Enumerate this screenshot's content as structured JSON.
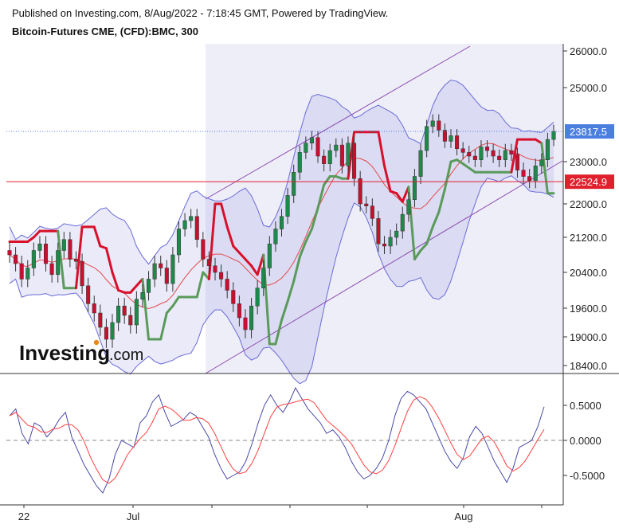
{
  "header": {
    "published": "Published on Investing.com, 8/Aug/2022 - 7:18:45 GMT, Powered by TradingView.",
    "symbol": "Bitcoin-Futures CME, (CFD):BMC, 300"
  },
  "logo": {
    "main": "Investing",
    "suffix": ".com"
  },
  "price_tags": {
    "last": "23817.5",
    "level": "22524.9"
  },
  "colors": {
    "last_tag": "#4a7fe0",
    "level_tag": "#e0202c",
    "up_candle": "#1e8a4a",
    "down_candle": "#c8102e",
    "supertrend_down": "#d8102a",
    "supertrend_up": "#5a9a5a",
    "bollinger": "#6a6ad8",
    "channel": "#8a4ab0",
    "oscillator_fast": "#4a4aa8",
    "oscillator_slow": "#ff4040"
  },
  "chart_data": [
    {
      "type": "line",
      "title": "Bitcoin-Futures CME, (CFD):BMC, 300",
      "y_ticks": [
        "26000.0",
        "25000.0",
        "23000.0",
        "22000.0",
        "21200.0",
        "20400.0",
        "19600.0",
        "19000.0",
        "18400.0"
      ],
      "y_tick_values": [
        26000,
        25000,
        23000,
        22000,
        21200,
        20400,
        19600,
        19000,
        18400
      ],
      "x_ticks": [
        "22",
        "Jul",
        "Aug"
      ],
      "horizontal_levels": [
        {
          "name": "last",
          "value": 23817.5,
          "style": "dotted"
        },
        {
          "name": "level",
          "value": 22524.9,
          "style": "solid"
        }
      ],
      "series": [
        {
          "values": [
            20800,
            20600,
            20250,
            20500,
            20900,
            21050,
            20600,
            20350,
            20900,
            21150,
            20700,
            20650,
            20100,
            19700,
            19500,
            19200,
            18950,
            19300,
            19650,
            19450,
            19250,
            19800,
            19950,
            20250,
            20600,
            20500,
            20150,
            20800,
            21400,
            21600,
            21700,
            21150,
            20700,
            20550,
            20400,
            20250,
            20000,
            19700,
            19400,
            19150,
            19650,
            20050,
            20500,
            21050,
            21400,
            21700,
            22200,
            22750,
            23250,
            23500,
            23650,
            23150,
            22950,
            23300,
            23450,
            22900,
            23500,
            22600,
            22000,
            21950,
            21650,
            21050,
            21000,
            21200,
            21350,
            21750,
            22100,
            22650,
            23300,
            23950,
            24100,
            23850,
            23550,
            23700,
            23350,
            23250,
            23150,
            23050,
            23400,
            23300,
            23150,
            23050,
            23300,
            23200,
            22800,
            22650,
            22550,
            22900,
            23050,
            23600,
            23817.5
          ]
        },
        {
          "name": "oscillator",
          "y_ticks": [
            "0.5000",
            "0.0000",
            "-0.5000"
          ],
          "y_tick_values": [
            0.5,
            0,
            -0.5
          ],
          "values": [
            0.35,
            0.45,
            0.1,
            -0.05,
            0.25,
            0.2,
            0.05,
            0.15,
            0.3,
            0.4,
            0.05,
            -0.15,
            -0.35,
            -0.5,
            -0.65,
            -0.75,
            -0.55,
            -0.2,
            0.0,
            -0.05,
            -0.1,
            0.25,
            0.35,
            0.55,
            0.65,
            0.4,
            0.2,
            0.25,
            0.3,
            0.4,
            0.35,
            0.2,
            0.05,
            -0.2,
            -0.4,
            -0.55,
            -0.5,
            -0.45,
            -0.3,
            -0.05,
            0.25,
            0.5,
            0.65,
            0.5,
            0.4,
            0.55,
            0.75,
            0.6,
            0.45,
            0.35,
            0.25,
            0.1,
            0.15,
            0.05,
            -0.1,
            -0.3,
            -0.45,
            -0.55,
            -0.5,
            -0.4,
            -0.25,
            0.0,
            0.35,
            0.6,
            0.7,
            0.65,
            0.55,
            0.45,
            0.25,
            0.05,
            -0.15,
            -0.3,
            -0.4,
            -0.25,
            0.05,
            0.2,
            0.1,
            -0.1,
            -0.3,
            -0.45,
            -0.6,
            -0.4,
            -0.1,
            -0.05,
            0.0,
            0.2,
            0.48
          ]
        }
      ]
    }
  ]
}
